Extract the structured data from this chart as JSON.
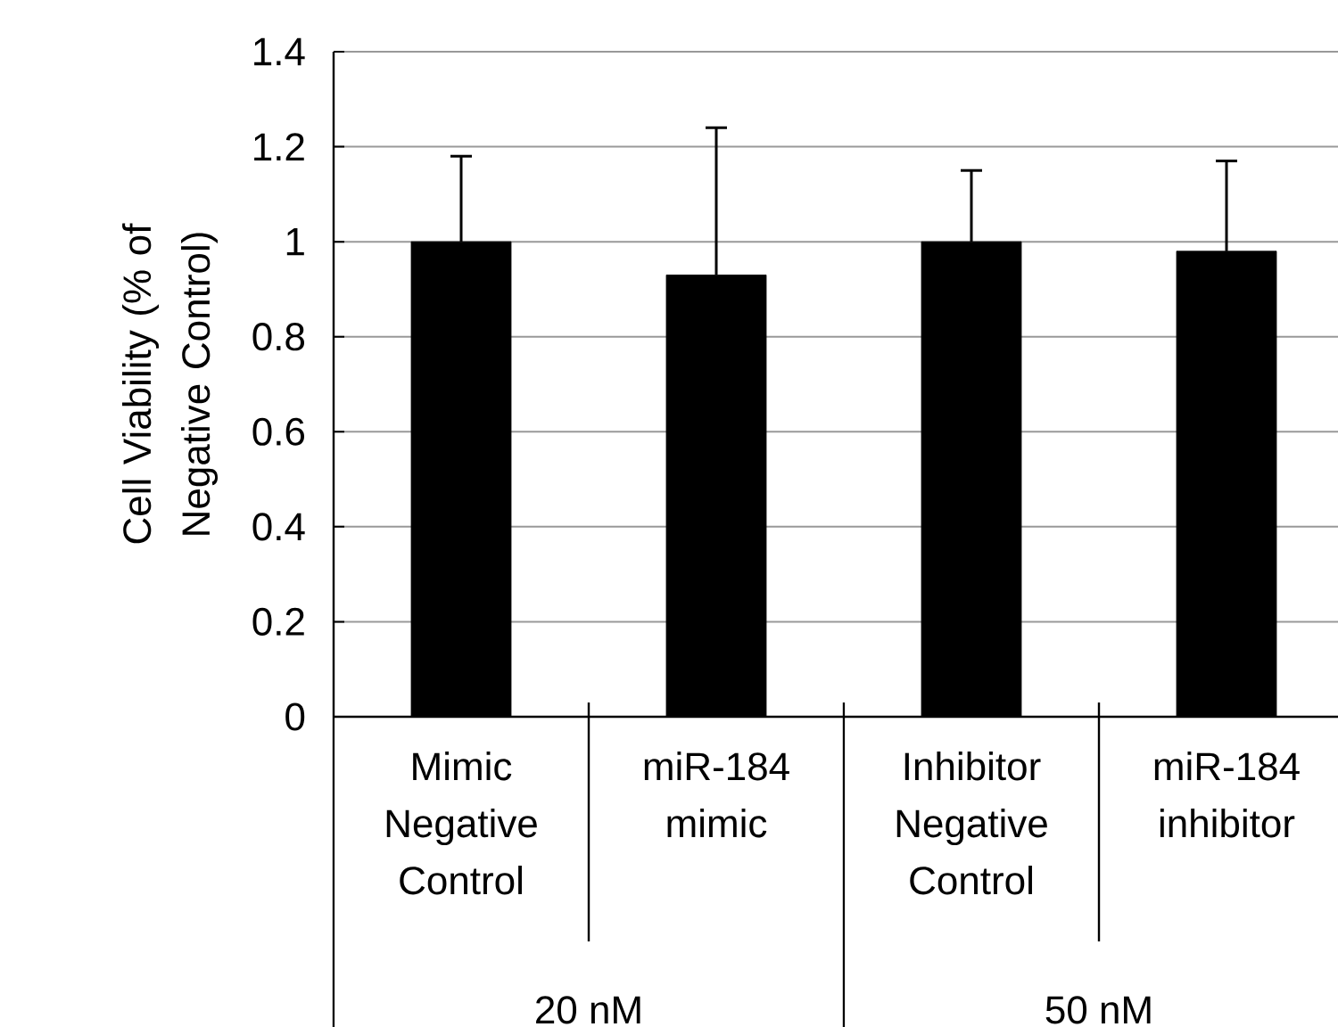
{
  "chart_data": {
    "type": "bar",
    "ylabel": "Cell Viability (% of Negative Control)",
    "categories": [
      "Mimic Negative Control",
      "miR-184 mimic",
      "Inhibitor Negative Control",
      "miR-184 inhibitor"
    ],
    "values": [
      1.0,
      0.93,
      1.0,
      0.98
    ],
    "errors": [
      [
        1.0,
        1.18
      ],
      [
        0.93,
        1.24
      ],
      [
        1.0,
        1.15
      ],
      [
        0.98,
        1.17
      ]
    ],
    "color": "#000000",
    "ylim": [
      0,
      1.4
    ],
    "yticks": [
      0,
      0.2,
      0.4,
      0.6,
      0.8,
      1,
      1.2,
      1.4
    ],
    "grid": "y",
    "annotations": [
      "20 nM",
      "50 nM"
    ]
  }
}
